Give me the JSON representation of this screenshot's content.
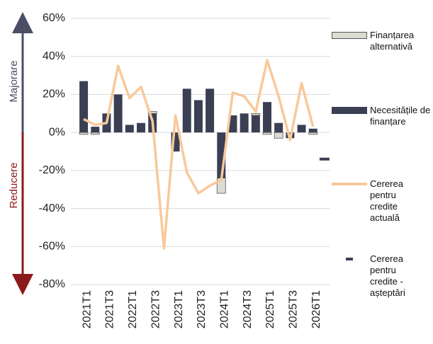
{
  "chart_data": {
    "type": "bar-line",
    "categories": [
      "2021T1",
      null,
      "2021T3",
      null,
      "2022T1",
      null,
      "2022T3",
      null,
      "2023T1",
      null,
      "2023T3",
      null,
      "2024T1",
      null,
      "2024T3",
      null,
      "2025T1",
      null,
      "2025T3",
      null,
      "2026T1",
      null
    ],
    "series": [
      {
        "name": "Finanțarea alternativă",
        "type": "bar",
        "color": "#dcdcd2",
        "values": [
          -1,
          -1,
          0,
          0,
          0,
          0,
          1,
          0,
          0,
          0,
          0,
          0,
          -8,
          0,
          0,
          1,
          -1,
          -3,
          0,
          0,
          -1,
          null
        ]
      },
      {
        "name": "Necesitățile de finanțare",
        "type": "bar",
        "color": "#3a3f54",
        "values": [
          27,
          3,
          10,
          20,
          4,
          5,
          10,
          0,
          -10,
          23,
          17,
          23,
          -24,
          9,
          10,
          9,
          16,
          5,
          -3,
          4,
          2,
          null
        ]
      },
      {
        "name": "Cererea pentru credite actuală",
        "type": "line",
        "color": "#f8c99a",
        "values": [
          7,
          4,
          5,
          35,
          18,
          24,
          6,
          -61,
          9,
          -21,
          -32,
          -28,
          -25,
          21,
          19,
          11,
          38,
          19,
          -4,
          26,
          3,
          null
        ]
      },
      {
        "name": "Cererea pentru credite - așteptări",
        "type": "dash",
        "color": "#3a3f54",
        "values": [
          null,
          null,
          null,
          null,
          null,
          null,
          null,
          null,
          null,
          null,
          null,
          null,
          null,
          null,
          null,
          null,
          null,
          null,
          null,
          null,
          null,
          -14
        ]
      }
    ],
    "ylim": [
      -80,
      60
    ],
    "yticks": [
      {
        "value": -80,
        "label": "-80%"
      },
      {
        "value": -60,
        "label": "-60%"
      },
      {
        "value": -40,
        "label": "-40%"
      },
      {
        "value": -20,
        "label": "-20%"
      },
      {
        "value": 0,
        "label": "0%"
      },
      {
        "value": 20,
        "label": "20%"
      },
      {
        "value": 40,
        "label": "40%"
      },
      {
        "value": 60,
        "label": "60%"
      }
    ],
    "grid": true,
    "annotations": [
      "Majorare",
      "Reducere"
    ]
  }
}
